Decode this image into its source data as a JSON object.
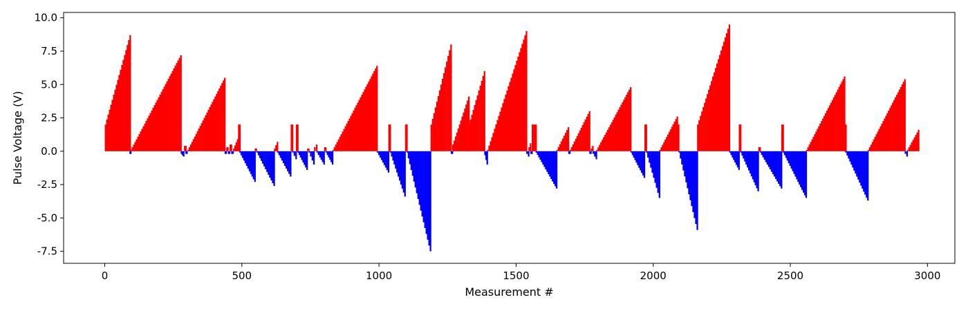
{
  "chart_data": {
    "type": "bar",
    "title": "",
    "xlabel": "Measurement #",
    "ylabel": "Pulse Voltage (V)",
    "xlim": [
      -150,
      3100
    ],
    "ylim": [
      -8.4,
      10.4
    ],
    "xticks": [
      0,
      500,
      1000,
      1500,
      2000,
      2500,
      3000
    ],
    "yticks": [
      -7.5,
      -5.0,
      -2.5,
      0.0,
      2.5,
      5.0,
      7.5,
      10.0
    ],
    "grid": false,
    "legend": "none",
    "colors": {
      "positive": "#ff0000",
      "negative": "#0000ff",
      "axes": "#000000"
    },
    "series": [
      {
        "description": "Pulse voltage per measurement; ramps of values, red when >= 0, blue when < 0",
        "ramps": [
          {
            "x_start": 0,
            "x_end": 90,
            "v_start": 2.0,
            "v_end": 8.7
          },
          {
            "x_start": 90,
            "x_end": 92,
            "v_start": -0.2,
            "v_end": -0.2
          },
          {
            "x_start": 93,
            "x_end": 275,
            "v_start": 0.1,
            "v_end": 7.2
          },
          {
            "x_start": 277,
            "x_end": 285,
            "v_start": -0.2,
            "v_end": -0.4
          },
          {
            "x_start": 289,
            "x_end": 293,
            "v_start": 0.4,
            "v_end": 0.4
          },
          {
            "x_start": 294,
            "x_end": 297,
            "v_start": -0.2,
            "v_end": -0.2
          },
          {
            "x_start": 301,
            "x_end": 435,
            "v_start": 0.1,
            "v_end": 5.5
          },
          {
            "x_start": 437,
            "x_end": 440,
            "v_start": -0.2,
            "v_end": -0.2
          },
          {
            "x_start": 443,
            "x_end": 446,
            "v_start": 0.3,
            "v_end": 0.3
          },
          {
            "x_start": 449,
            "x_end": 452,
            "v_start": -0.2,
            "v_end": -0.2
          },
          {
            "x_start": 455,
            "x_end": 459,
            "v_start": 0.5,
            "v_end": 0.5
          },
          {
            "x_start": 461,
            "x_end": 465,
            "v_start": -0.2,
            "v_end": -0.2
          },
          {
            "x_start": 468,
            "x_end": 482,
            "v_start": 0.2,
            "v_end": 0.9
          },
          {
            "x_start": 486,
            "x_end": 490,
            "v_start": 2.0,
            "v_end": 2.0
          },
          {
            "x_start": 490,
            "x_end": 545,
            "v_start": -0.1,
            "v_end": -2.3
          },
          {
            "x_start": 547,
            "x_end": 550,
            "v_start": 0.2,
            "v_end": 0.2
          },
          {
            "x_start": 553,
            "x_end": 615,
            "v_start": -0.1,
            "v_end": -2.6
          },
          {
            "x_start": 617,
            "x_end": 627,
            "v_start": 0.2,
            "v_end": 0.7
          },
          {
            "x_start": 628,
            "x_end": 675,
            "v_start": -0.1,
            "v_end": -1.9
          },
          {
            "x_start": 678,
            "x_end": 682,
            "v_start": 2.0,
            "v_end": 2.0
          },
          {
            "x_start": 683,
            "x_end": 695,
            "v_start": -0.1,
            "v_end": -0.6
          },
          {
            "x_start": 697,
            "x_end": 701,
            "v_start": 2.0,
            "v_end": 2.0
          },
          {
            "x_start": 702,
            "x_end": 735,
            "v_start": -0.1,
            "v_end": -1.4
          },
          {
            "x_start": 738,
            "x_end": 741,
            "v_start": 0.2,
            "v_end": 0.2
          },
          {
            "x_start": 743,
            "x_end": 760,
            "v_start": -0.1,
            "v_end": -1.0
          },
          {
            "x_start": 763,
            "x_end": 770,
            "v_start": 0.3,
            "v_end": 0.5
          },
          {
            "x_start": 772,
            "x_end": 797,
            "v_start": -0.1,
            "v_end": -1.0
          },
          {
            "x_start": 800,
            "x_end": 803,
            "v_start": 0.3,
            "v_end": 0.3
          },
          {
            "x_start": 805,
            "x_end": 828,
            "v_start": -0.1,
            "v_end": -1.0
          },
          {
            "x_start": 830,
            "x_end": 990,
            "v_start": 0.1,
            "v_end": 6.4
          },
          {
            "x_start": 992,
            "x_end": 1032,
            "v_start": -0.1,
            "v_end": -1.6
          },
          {
            "x_start": 1034,
            "x_end": 1038,
            "v_start": 2.0,
            "v_end": 2.0
          },
          {
            "x_start": 1039,
            "x_end": 1092,
            "v_start": -0.1,
            "v_end": -3.4
          },
          {
            "x_start": 1095,
            "x_end": 1099,
            "v_start": 2.0,
            "v_end": 2.0
          },
          {
            "x_start": 1100,
            "x_end": 1185,
            "v_start": -0.1,
            "v_end": -7.5
          },
          {
            "x_start": 1188,
            "x_end": 1260,
            "v_start": 2.0,
            "v_end": 8.0
          },
          {
            "x_start": 1262,
            "x_end": 1265,
            "v_start": -0.2,
            "v_end": -0.2
          },
          {
            "x_start": 1267,
            "x_end": 1325,
            "v_start": 0.5,
            "v_end": 4.1
          },
          {
            "x_start": 1326,
            "x_end": 1382,
            "v_start": 2.0,
            "v_end": 6.0
          },
          {
            "x_start": 1384,
            "x_end": 1392,
            "v_start": -0.3,
            "v_end": -1.0
          },
          {
            "x_start": 1394,
            "x_end": 1535,
            "v_start": 0.1,
            "v_end": 9.0
          },
          {
            "x_start": 1537,
            "x_end": 1543,
            "v_start": -0.2,
            "v_end": -0.4
          },
          {
            "x_start": 1545,
            "x_end": 1550,
            "v_start": 0.3,
            "v_end": 0.6
          },
          {
            "x_start": 1552,
            "x_end": 1555,
            "v_start": -0.2,
            "v_end": -0.2
          },
          {
            "x_start": 1557,
            "x_end": 1570,
            "v_start": 2.0,
            "v_end": 2.0
          },
          {
            "x_start": 1571,
            "x_end": 1645,
            "v_start": -0.1,
            "v_end": -2.8
          },
          {
            "x_start": 1647,
            "x_end": 1688,
            "v_start": 0.1,
            "v_end": 1.8
          },
          {
            "x_start": 1690,
            "x_end": 1693,
            "v_start": -0.2,
            "v_end": -0.2
          },
          {
            "x_start": 1695,
            "x_end": 1765,
            "v_start": 0.1,
            "v_end": 3.0
          },
          {
            "x_start": 1767,
            "x_end": 1770,
            "v_start": -0.2,
            "v_end": -0.2
          },
          {
            "x_start": 1772,
            "x_end": 1777,
            "v_start": 0.2,
            "v_end": 0.4
          },
          {
            "x_start": 1779,
            "x_end": 1790,
            "v_start": -0.2,
            "v_end": -0.6
          },
          {
            "x_start": 1792,
            "x_end": 1915,
            "v_start": 0.1,
            "v_end": 4.8
          },
          {
            "x_start": 1917,
            "x_end": 1965,
            "v_start": -0.1,
            "v_end": -2.0
          },
          {
            "x_start": 1968,
            "x_end": 1972,
            "v_start": 2.0,
            "v_end": 2.0
          },
          {
            "x_start": 1973,
            "x_end": 2020,
            "v_start": -0.1,
            "v_end": -3.5
          },
          {
            "x_start": 2022,
            "x_end": 2085,
            "v_start": 0.1,
            "v_end": 2.6
          },
          {
            "x_start": 2085,
            "x_end": 2090,
            "v_start": 2.0,
            "v_end": 2.0
          },
          {
            "x_start": 2092,
            "x_end": 2158,
            "v_start": -0.1,
            "v_end": -5.9
          },
          {
            "x_start": 2160,
            "x_end": 2275,
            "v_start": 2.0,
            "v_end": 9.5
          },
          {
            "x_start": 2277,
            "x_end": 2310,
            "v_start": -0.1,
            "v_end": -1.4
          },
          {
            "x_start": 2312,
            "x_end": 2316,
            "v_start": 2.0,
            "v_end": 2.0
          },
          {
            "x_start": 2317,
            "x_end": 2380,
            "v_start": -0.1,
            "v_end": -3.0
          },
          {
            "x_start": 2383,
            "x_end": 2387,
            "v_start": 0.3,
            "v_end": 0.3
          },
          {
            "x_start": 2388,
            "x_end": 2465,
            "v_start": -0.1,
            "v_end": -2.8
          },
          {
            "x_start": 2467,
            "x_end": 2471,
            "v_start": 2.0,
            "v_end": 2.0
          },
          {
            "x_start": 2472,
            "x_end": 2555,
            "v_start": -0.1,
            "v_end": -3.5
          },
          {
            "x_start": 2557,
            "x_end": 2695,
            "v_start": 0.1,
            "v_end": 5.6
          },
          {
            "x_start": 2695,
            "x_end": 2700,
            "v_start": 2.0,
            "v_end": 2.0
          },
          {
            "x_start": 2700,
            "x_end": 2780,
            "v_start": -0.1,
            "v_end": -3.7
          },
          {
            "x_start": 2782,
            "x_end": 2915,
            "v_start": 0.1,
            "v_end": 5.4
          },
          {
            "x_start": 2917,
            "x_end": 2923,
            "v_start": -0.2,
            "v_end": -0.4
          },
          {
            "x_start": 2925,
            "x_end": 2965,
            "v_start": 0.1,
            "v_end": 1.6
          }
        ],
        "step": 5
      }
    ]
  }
}
